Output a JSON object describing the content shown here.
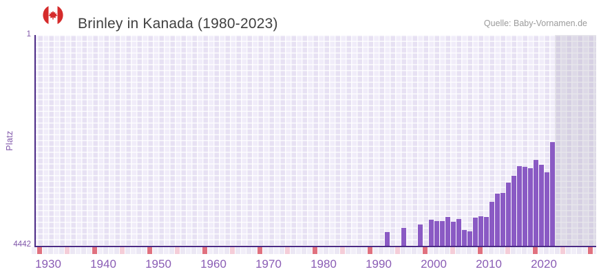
{
  "header": {
    "title": "Brinley in Kanada (1980-2023)",
    "source": "Quelle: Baby-Vornamen.de",
    "flag_icon": "canada-flag-icon",
    "flag_colors": {
      "red": "#d52b2b",
      "white": "#ffffff"
    }
  },
  "chart_data": {
    "type": "bar",
    "title": "Brinley in Kanada (1980-2023)",
    "xlabel": "",
    "ylabel": "Platz",
    "y_axis": {
      "top_label": "1",
      "bottom_label": "4442",
      "min": 1,
      "max": 4442,
      "inverted": true,
      "grid": true
    },
    "x_axis": {
      "start_year": 1927,
      "end_year": 2029,
      "tick_years": [
        1930,
        1940,
        1950,
        1960,
        1970,
        1980,
        1990,
        2000,
        2010,
        2020
      ]
    },
    "series": [
      {
        "name": "Platz",
        "years": [
          1991,
          1994,
          1997,
          1999,
          2000,
          2001,
          2002,
          2003,
          2004,
          2005,
          2006,
          2007,
          2008,
          2009,
          2010,
          2011,
          2012,
          2013,
          2014,
          2015,
          2016,
          2017,
          2018,
          2019,
          2020,
          2021
        ],
        "ranks": [
          4150,
          4065,
          3995,
          3890,
          3920,
          3920,
          3835,
          3935,
          3880,
          4110,
          4140,
          3850,
          3820,
          3835,
          3515,
          3340,
          3325,
          3110,
          2965,
          2770,
          2780,
          2805,
          2630,
          2740,
          2900,
          2255
        ]
      }
    ],
    "no_data_overlay": {
      "from_year": 2022,
      "to_year": 2029
    },
    "year_strip_markers": {
      "dark_pink_years": [
        1928,
        1938,
        1948,
        1958,
        1968,
        1978,
        1988,
        1998,
        2008,
        2018,
        2028
      ],
      "light_pink_years": [
        1933,
        1943,
        1953,
        1963,
        1973,
        1983,
        1993,
        2003,
        2013,
        2023
      ]
    },
    "legend": null
  },
  "colors": {
    "bar": "#8a5ac4",
    "axis": "#4b2a85",
    "tick_text": "#8a5cb5",
    "strip_dark_pink": "#e0717f",
    "strip_light_pink": "#f5cdd8",
    "strip_base_a": "#f1eef8",
    "strip_base_b": "#ebe7f4"
  }
}
